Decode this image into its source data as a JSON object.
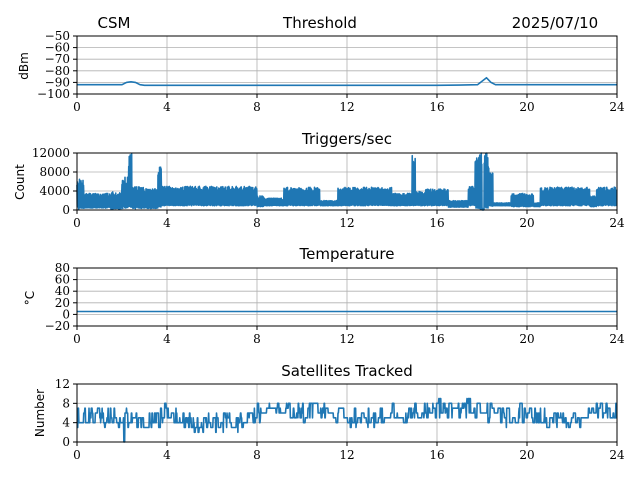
{
  "header": {
    "left": "CSM",
    "right": "2025/07/10"
  },
  "style": {
    "line_color": "#1f77b4",
    "grid_color": "#b0b0b0"
  },
  "chart_data": [
    {
      "type": "line",
      "title": "Threshold",
      "ylabel": "dBm",
      "xlim": [
        0,
        24
      ],
      "ylim": [
        -100,
        -50
      ],
      "xticks": [
        0,
        4,
        8,
        12,
        16,
        20,
        24
      ],
      "yticks": [
        -100,
        -90,
        -80,
        -70,
        -60,
        -50
      ],
      "ytick_labels": [
        "−100",
        "−90",
        "−80",
        "−70",
        "−60",
        "−50"
      ],
      "grid": true,
      "series": [
        {
          "x": [
            0,
            1,
            1.5,
            2,
            2.2,
            2.4,
            2.6,
            2.8,
            3.0,
            4,
            6,
            8,
            10,
            12,
            14,
            16,
            17,
            17.8,
            18.0,
            18.2,
            18.4,
            18.6,
            19,
            20,
            22,
            24
          ],
          "y": [
            -92,
            -92,
            -92,
            -92,
            -90,
            -89.5,
            -90,
            -92,
            -92.5,
            -92.5,
            -92.5,
            -92.5,
            -92.5,
            -92.5,
            -92.5,
            -92.5,
            -92.3,
            -92,
            -89,
            -86,
            -90,
            -92,
            -92,
            -92,
            -92,
            -92
          ]
        }
      ]
    },
    {
      "type": "line",
      "title": "Triggers/sec",
      "ylabel": "Count",
      "xlim": [
        0,
        24
      ],
      "ylim": [
        0,
        12000
      ],
      "xticks": [
        0,
        4,
        8,
        12,
        16,
        20,
        24
      ],
      "yticks": [
        0,
        4000,
        8000,
        12000
      ],
      "ytick_labels": [
        "0",
        "4000",
        "8000",
        "12000"
      ],
      "grid": true,
      "series": [
        {
          "profile": [
            [
              0.0,
              0.3,
              200,
              6500
            ],
            [
              0.3,
              1.5,
              400,
              3500
            ],
            [
              1.5,
              2.0,
              200,
              3800
            ],
            [
              2.0,
              2.3,
              300,
              7000
            ],
            [
              2.3,
              2.45,
              500,
              12000
            ],
            [
              2.45,
              3.0,
              300,
              5000
            ],
            [
              3.0,
              3.6,
              300,
              4500
            ],
            [
              3.6,
              3.75,
              500,
              9500
            ],
            [
              3.75,
              8.0,
              900,
              5000
            ],
            [
              8.0,
              8.3,
              700,
              3000
            ],
            [
              8.3,
              9.2,
              900,
              2500
            ],
            [
              9.2,
              10.8,
              900,
              4800
            ],
            [
              10.8,
              11.6,
              900,
              2000
            ],
            [
              11.6,
              14.0,
              900,
              4800
            ],
            [
              14.0,
              14.9,
              900,
              3500
            ],
            [
              14.9,
              15.05,
              900,
              12000
            ],
            [
              15.05,
              15.5,
              900,
              4000
            ],
            [
              15.5,
              16.0,
              900,
              4500
            ],
            [
              16.0,
              16.5,
              900,
              4500
            ],
            [
              16.5,
              17.4,
              600,
              2000
            ],
            [
              17.4,
              17.7,
              900,
              5000
            ],
            [
              17.7,
              17.9,
              300,
              12000
            ],
            [
              17.9,
              18.0,
              0,
              12000
            ],
            [
              18.0,
              18.1,
              0,
              300
            ],
            [
              18.1,
              18.3,
              300,
              12000
            ],
            [
              18.3,
              18.5,
              500,
              9000
            ],
            [
              18.5,
              19.3,
              900,
              1500
            ],
            [
              19.3,
              20.3,
              700,
              3500
            ],
            [
              20.3,
              20.6,
              700,
              1500
            ],
            [
              20.6,
              22.8,
              900,
              4800
            ],
            [
              22.8,
              23.1,
              700,
              3000
            ],
            [
              23.1,
              24.0,
              900,
              4800
            ]
          ]
        }
      ]
    },
    {
      "type": "line",
      "title": "Temperature",
      "ylabel": "°C",
      "xlim": [
        0,
        24
      ],
      "ylim": [
        -20,
        80
      ],
      "xticks": [
        0,
        4,
        8,
        12,
        16,
        20,
        24
      ],
      "yticks": [
        -20,
        0,
        20,
        40,
        60,
        80
      ],
      "ytick_labels": [
        "−20",
        "0",
        "20",
        "40",
        "60",
        "80"
      ],
      "grid": true,
      "series": [
        {
          "x": [
            0,
            24
          ],
          "y": [
            5,
            5
          ]
        }
      ]
    },
    {
      "type": "line",
      "title": "Satellites Tracked",
      "ylabel": "Number",
      "xlim": [
        0,
        24
      ],
      "ylim": [
        0,
        12
      ],
      "xticks": [
        0,
        4,
        8,
        12,
        16,
        20,
        24
      ],
      "yticks": [
        0,
        4,
        8,
        12
      ],
      "ytick_labels": [
        "0",
        "4",
        "8",
        "12"
      ],
      "grid": true,
      "series": [
        {
          "profile_hourly_mean": [
            5,
            5,
            5,
            4,
            6,
            4,
            4,
            4,
            6,
            6,
            6,
            6,
            5,
            5,
            6,
            6,
            7,
            7,
            7,
            5,
            6,
            5,
            5,
            6,
            6
          ]
        }
      ]
    }
  ]
}
